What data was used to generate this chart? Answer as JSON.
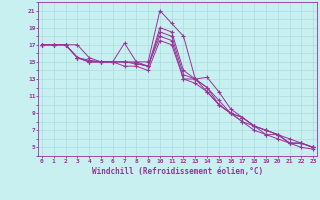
{
  "xlabel": "Windchill (Refroidissement éolien,°C)",
  "bg_color": "#c8f0f0",
  "line_color": "#993399",
  "grid_color": "#aadddd",
  "x_min": 0,
  "x_max": 23,
  "y_min": 4,
  "y_max": 22,
  "yticks": [
    5,
    7,
    9,
    11,
    13,
    15,
    17,
    19,
    21
  ],
  "xticks": [
    0,
    1,
    2,
    3,
    4,
    5,
    6,
    7,
    8,
    9,
    10,
    11,
    12,
    13,
    14,
    15,
    16,
    17,
    18,
    19,
    20,
    21,
    22,
    23
  ],
  "lines": [
    {
      "x": [
        0,
        1,
        2,
        3,
        4,
        5,
        6,
        7,
        8,
        9,
        10,
        11,
        12,
        13,
        14,
        15,
        16,
        17,
        18,
        19,
        20,
        21,
        22,
        23
      ],
      "y": [
        17,
        17,
        17,
        17,
        15.5,
        15,
        15,
        17.2,
        15,
        15,
        21,
        19.5,
        18,
        13,
        13.2,
        11.5,
        9.5,
        8.5,
        7.5,
        7,
        6.5,
        6,
        5.5,
        5
      ]
    },
    {
      "x": [
        0,
        1,
        2,
        3,
        4,
        5,
        6,
        7,
        8,
        9,
        10,
        11,
        12,
        13,
        14,
        15,
        16,
        17,
        18,
        19,
        20,
        21,
        22,
        23
      ],
      "y": [
        17,
        17,
        17,
        15.5,
        15.2,
        15,
        15,
        15,
        15,
        14.5,
        19,
        18.5,
        14,
        13,
        12,
        10.5,
        9,
        8.5,
        7.5,
        7,
        6.5,
        5.5,
        5.5,
        5
      ]
    },
    {
      "x": [
        0,
        1,
        2,
        3,
        4,
        5,
        6,
        7,
        8,
        9,
        10,
        11,
        12,
        13,
        14,
        15,
        16,
        17,
        18,
        19,
        20,
        21,
        22,
        23
      ],
      "y": [
        17,
        17,
        17,
        15.5,
        15,
        15,
        15,
        15,
        14.8,
        14.5,
        18.5,
        18,
        13.5,
        13,
        12,
        10,
        9,
        8.5,
        7.5,
        7,
        6.5,
        5.5,
        5.5,
        5
      ]
    },
    {
      "x": [
        0,
        1,
        2,
        3,
        4,
        5,
        6,
        7,
        8,
        9,
        10,
        11,
        12,
        13,
        14,
        15,
        16,
        17,
        18,
        19,
        20,
        21,
        22,
        23
      ],
      "y": [
        17,
        17,
        17,
        15.5,
        15,
        15,
        15,
        15,
        14.8,
        14.5,
        18,
        17.5,
        13,
        13,
        11.5,
        10,
        9,
        8,
        7.5,
        6.5,
        6.5,
        5.5,
        5.5,
        5
      ]
    },
    {
      "x": [
        0,
        1,
        2,
        3,
        4,
        5,
        6,
        7,
        8,
        9,
        10,
        11,
        12,
        13,
        14,
        15,
        16,
        17,
        18,
        19,
        20,
        21,
        22,
        23
      ],
      "y": [
        17,
        17,
        17,
        15.5,
        15,
        15,
        15,
        14.5,
        14.5,
        14,
        17.5,
        17,
        13,
        12.5,
        11.5,
        10,
        9,
        8,
        7,
        6.5,
        6,
        5.5,
        5,
        4.8
      ]
    }
  ]
}
